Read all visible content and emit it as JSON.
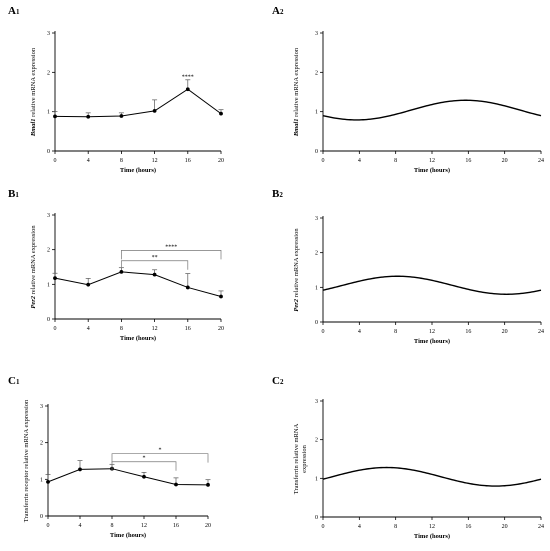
{
  "chart_data": [
    {
      "id": "A1",
      "type": "line",
      "panel_label": "A1",
      "label_sub": "1",
      "xlabel": "Time (hours)",
      "ylabel_italic": "Bmal1",
      "ylabel_rest": " relative mRNA expression",
      "x": [
        0,
        4,
        8,
        12,
        16,
        20
      ],
      "x_ticks": [
        0,
        4,
        8,
        12,
        16,
        20
      ],
      "xlim": [
        0,
        20
      ],
      "ylim": [
        0,
        3
      ],
      "y_ticks": [
        0,
        1,
        2,
        3
      ],
      "series": [
        {
          "values": [
            0.88,
            0.87,
            0.89,
            1.02,
            1.57,
            0.95
          ],
          "error": [
            0.12,
            0.1,
            0.08,
            0.28,
            0.24,
            0.1
          ]
        }
      ],
      "significance": [
        {
          "type": "star",
          "x": 16,
          "y": 1.84,
          "label": "****"
        }
      ]
    },
    {
      "id": "A2",
      "type": "line",
      "panel_label": "A2",
      "label_sub": "2",
      "xlabel": "Time (hours)",
      "ylabel_italic": "Bmal1",
      "ylabel_rest": " relative mRNA expression",
      "x_ticks": [
        0,
        4,
        8,
        12,
        16,
        20,
        24
      ],
      "xlim": [
        0,
        24
      ],
      "ylim": [
        0,
        3
      ],
      "y_ticks": [
        0,
        1,
        2,
        3
      ],
      "curve": {
        "mesor": 1.04,
        "amplitude": 0.25,
        "peak": 15.7,
        "period": 24
      }
    },
    {
      "id": "B1",
      "type": "line",
      "panel_label": "B1",
      "label_sub": "1",
      "xlabel": "Time (hours)",
      "ylabel_italic": "Per2",
      "ylabel_rest": " relative mRNA expression",
      "x": [
        0,
        4,
        8,
        12,
        16,
        20
      ],
      "x_ticks": [
        0,
        4,
        8,
        12,
        16,
        20
      ],
      "xlim": [
        0,
        20
      ],
      "ylim": [
        0,
        3
      ],
      "y_ticks": [
        0,
        1,
        2,
        3
      ],
      "series": [
        {
          "values": [
            1.18,
            0.99,
            1.36,
            1.28,
            0.91,
            0.65
          ],
          "error": [
            0.14,
            0.18,
            0.12,
            0.14,
            0.4,
            0.16
          ]
        }
      ],
      "significance": [
        {
          "type": "bracket",
          "x1": 8,
          "x2": 16,
          "y": 1.68,
          "label": "**"
        },
        {
          "type": "bracket",
          "x1": 8,
          "x2": 20,
          "y": 1.98,
          "label": "****"
        }
      ]
    },
    {
      "id": "B2",
      "type": "line",
      "panel_label": "B2",
      "label_sub": "2",
      "xlabel": "Time (hours)",
      "ylabel_italic": "Per2",
      "ylabel_rest": " relative mRNA expression",
      "x_ticks": [
        0,
        4,
        8,
        12,
        16,
        20,
        24
      ],
      "xlim": [
        0,
        24
      ],
      "ylim": [
        0,
        3
      ],
      "y_ticks": [
        0,
        1,
        2,
        3
      ],
      "curve": {
        "mesor": 1.06,
        "amplitude": 0.26,
        "peak": 8.2,
        "period": 24
      }
    },
    {
      "id": "C1",
      "type": "line",
      "panel_label": "C1",
      "label_sub": "1",
      "xlabel": "Time (hours)",
      "ylabel_italic": "",
      "ylabel_rest": "Transferrin receptor relative mRNA expression",
      "x": [
        0,
        4,
        8,
        12,
        16,
        20
      ],
      "x_ticks": [
        0,
        4,
        8,
        12,
        16,
        20
      ],
      "xlim": [
        0,
        20
      ],
      "ylim": [
        0,
        3
      ],
      "y_ticks": [
        0,
        1,
        2,
        3
      ],
      "series": [
        {
          "values": [
            0.93,
            1.27,
            1.29,
            1.07,
            0.86,
            0.85
          ],
          "error": [
            0.2,
            0.24,
            0.12,
            0.12,
            0.18,
            0.14
          ]
        }
      ],
      "significance": [
        {
          "type": "bracket",
          "x1": 8,
          "x2": 16,
          "y": 1.48,
          "label": "*"
        },
        {
          "type": "bracket",
          "x1": 8,
          "x2": 20,
          "y": 1.7,
          "label": "*"
        }
      ]
    },
    {
      "id": "C2",
      "type": "line",
      "panel_label": "C2",
      "label_sub": "2",
      "xlabel": "Time (hours)",
      "ylabel_italic": "",
      "ylabel_rest": "Transferrin relative mRNA expression",
      "x_ticks": [
        0,
        4,
        8,
        12,
        16,
        20,
        24
      ],
      "xlim": [
        0,
        24
      ],
      "ylim": [
        0,
        3
      ],
      "y_ticks": [
        0,
        1,
        2,
        3
      ],
      "curve": {
        "mesor": 1.04,
        "amplitude": 0.24,
        "peak": 7.0,
        "period": 24
      }
    }
  ]
}
